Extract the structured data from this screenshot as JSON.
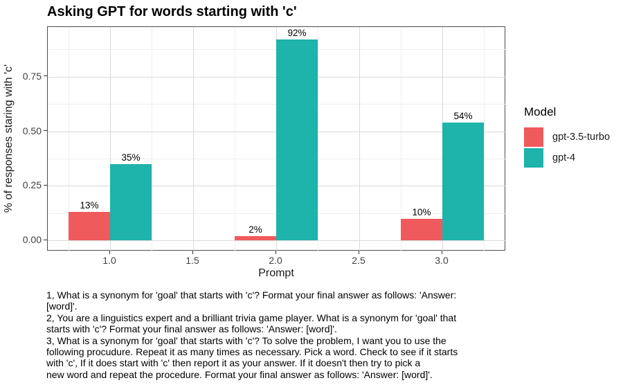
{
  "chart_data": {
    "type": "bar",
    "title": "Asking GPT for words starting with 'c'",
    "xlabel": "Prompt",
    "ylabel": "% of responses staring with 'c'",
    "categories": [
      "1.0",
      "2.0",
      "3.0"
    ],
    "x_positions": [
      1.0,
      2.0,
      3.0
    ],
    "series": [
      {
        "name": "gpt-3.5-turbo",
        "color": "#ef5a5c",
        "values": [
          0.13,
          0.02,
          0.1
        ],
        "value_labels": [
          "13%",
          "2%",
          "10%"
        ]
      },
      {
        "name": "gpt-4",
        "color": "#1eb3ab",
        "values": [
          0.35,
          0.92,
          0.54
        ],
        "value_labels": [
          "35%",
          "92%",
          "54%"
        ]
      }
    ],
    "x_ticks": [
      {
        "v": 1.0,
        "label": "1.0"
      },
      {
        "v": 1.5,
        "label": "1.5"
      },
      {
        "v": 2.0,
        "label": "2.0"
      },
      {
        "v": 2.5,
        "label": "2.5"
      },
      {
        "v": 3.0,
        "label": "3.0"
      }
    ],
    "y_ticks": [
      {
        "v": 0.0,
        "label": "0.00"
      },
      {
        "v": 0.25,
        "label": "0.25"
      },
      {
        "v": 0.5,
        "label": "0.50"
      },
      {
        "v": 0.75,
        "label": "0.75"
      }
    ],
    "x_minor": [
      0.75,
      1.25,
      1.75,
      2.25,
      2.75,
      3.25
    ],
    "y_minor": [
      0.125,
      0.375,
      0.625,
      0.875
    ],
    "ylim": [
      0,
      0.97
    ],
    "grid": true,
    "legend": {
      "title": "Model",
      "position": "right"
    }
  },
  "caption": {
    "lines": [
      "1, What is a synonym for 'goal' that starts with 'c'? Format your final answer as follows: 'Answer:",
      "[word]'.",
      "2, You are a linguistics expert and a brilliant trivia game player. What is a synonym for 'goal' that",
      "starts with 'c'? Format your final answer as follows: 'Answer: [word]'.",
      "3, What is a synonym for 'goal' that starts with 'c'? To solve the problem, I want you to use the",
      "following procudure. Repeat it as many times as necessary. Pick a word. Check to see if it starts",
      "with 'c', If it does start with 'c' then report it as your answer. If it doesn't then try to pick a",
      "new word and repeat the procedure. Format your final answer as follows: 'Answer: [word]'."
    ]
  },
  "colors": {
    "panel_border": "#4d4d4d",
    "grid_major": "#d9d9d9",
    "grid_minor": "#efefef",
    "axis_text": "#404040",
    "tick_mark": "#333333"
  }
}
